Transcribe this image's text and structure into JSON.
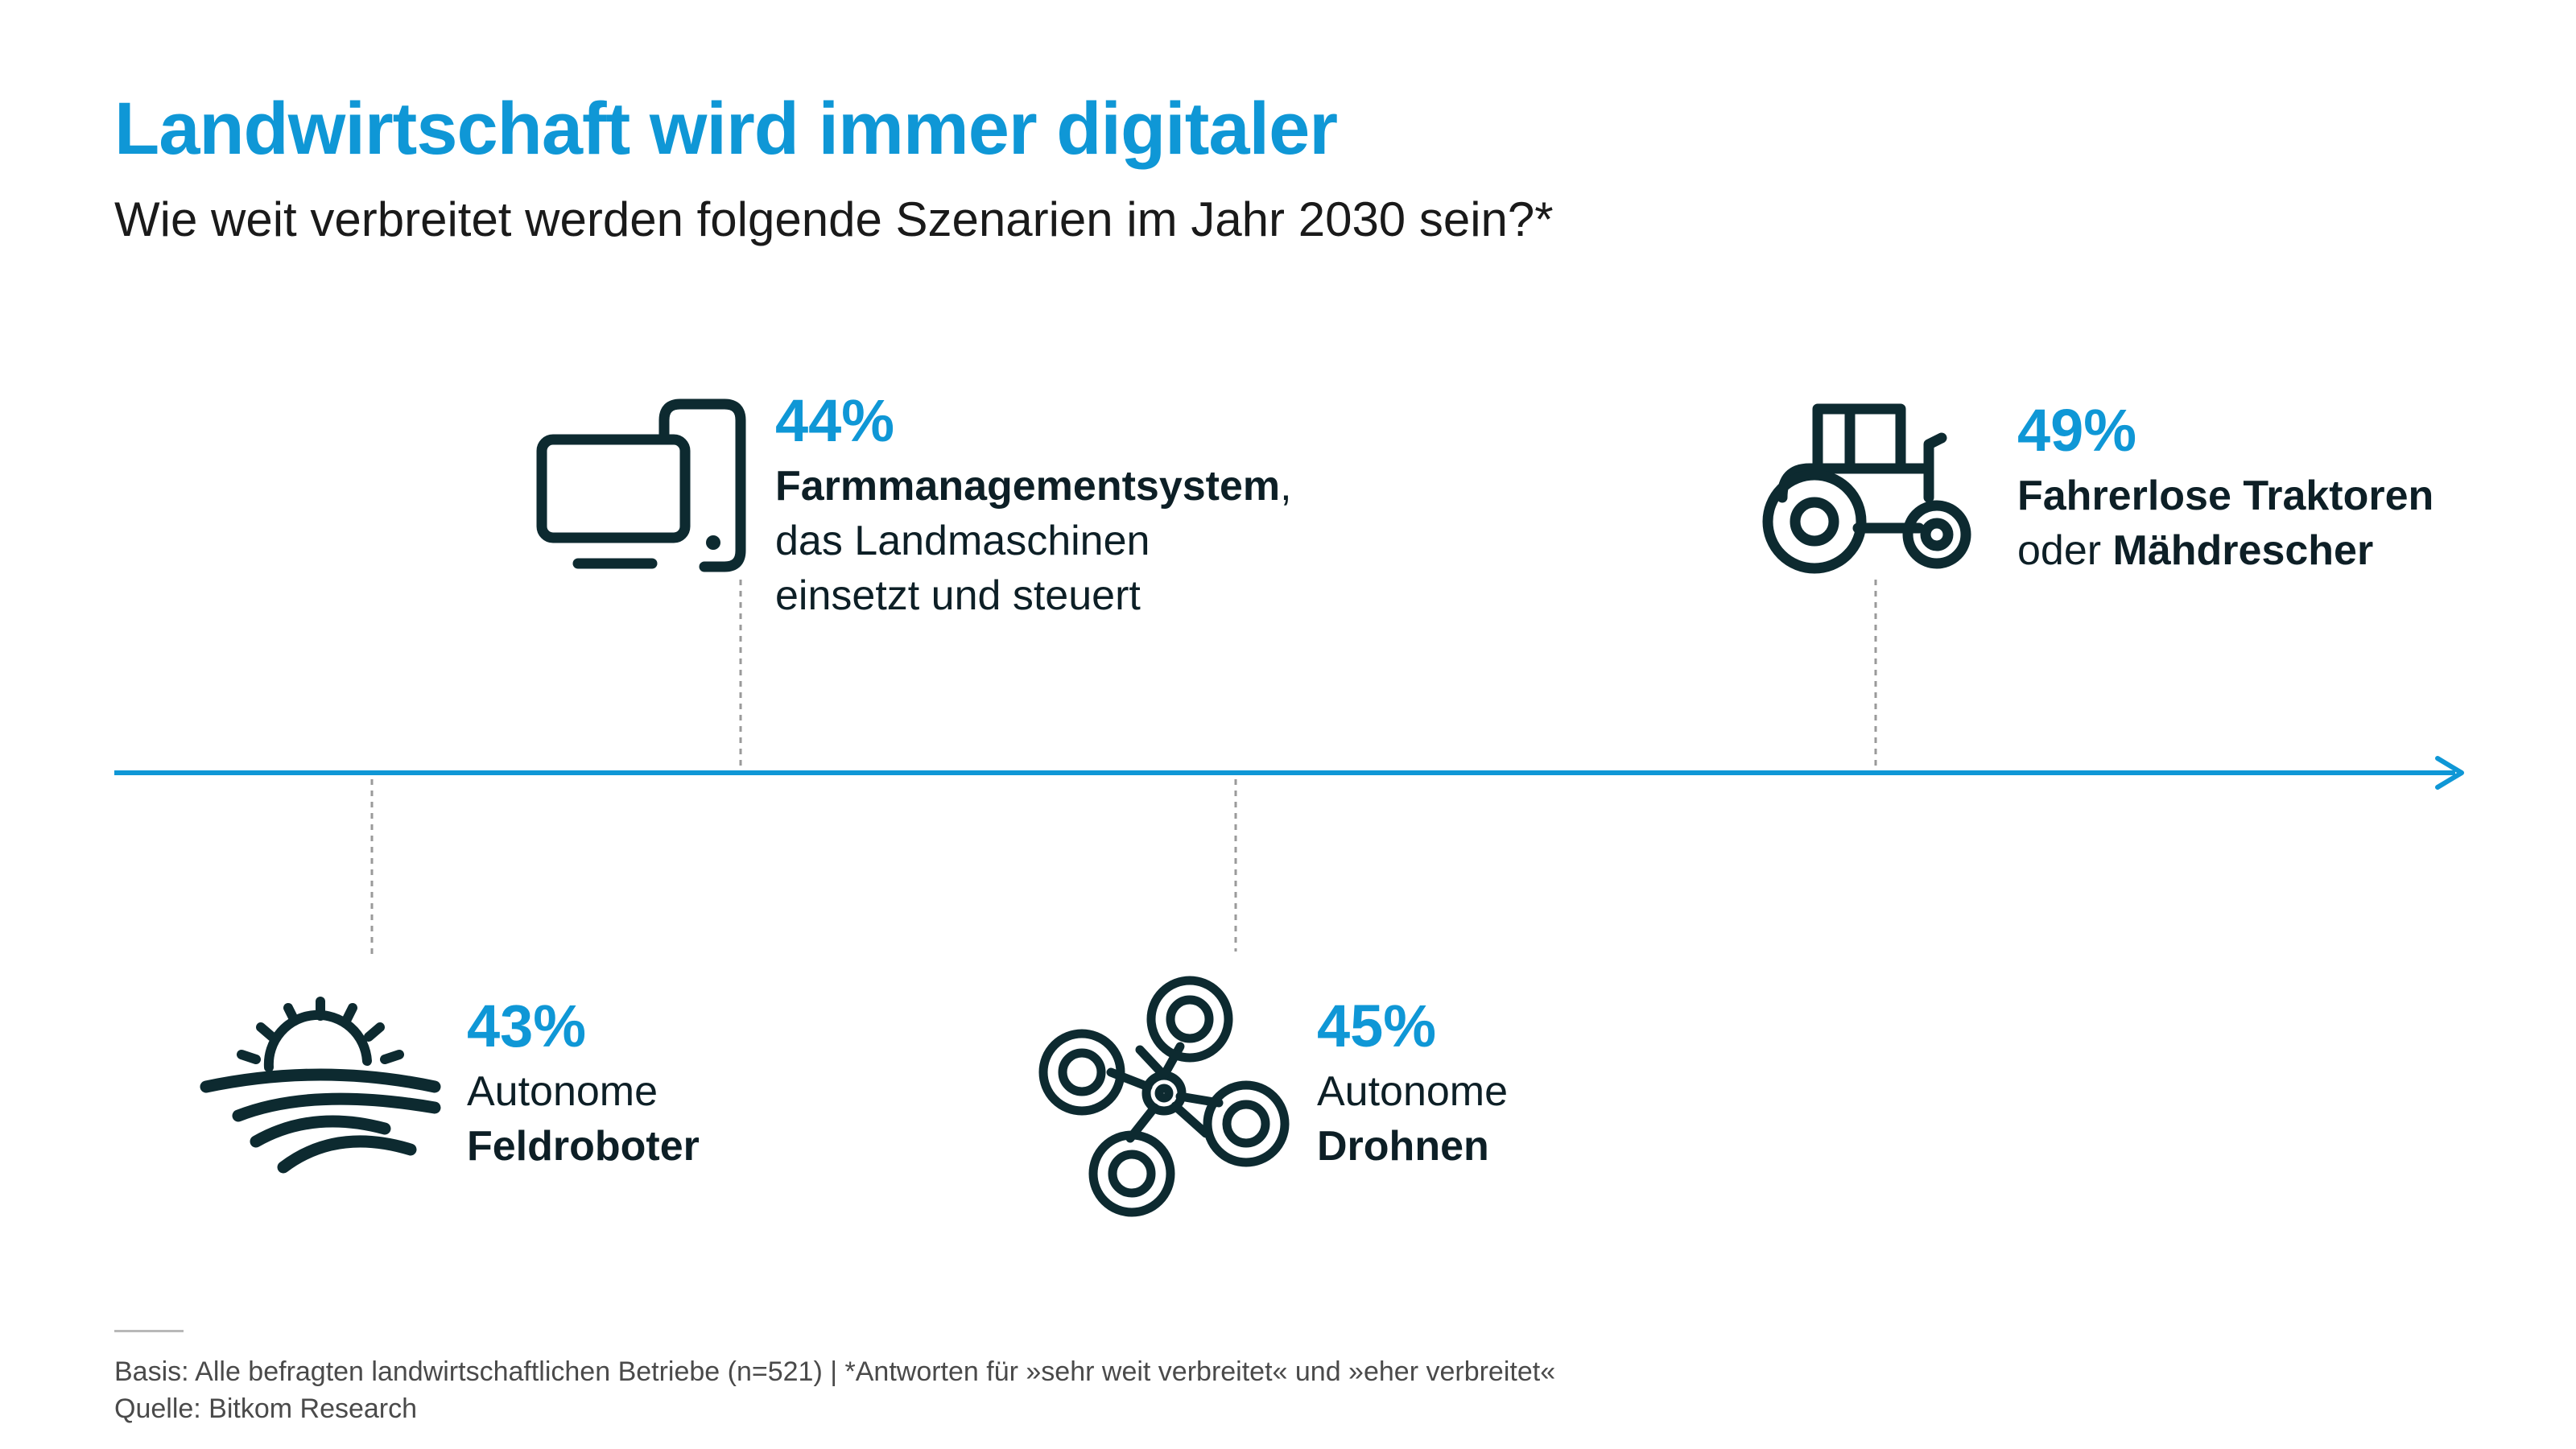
{
  "title": "Landwirtschaft wird immer digitaler",
  "subtitle": "Wie weit verbreitet werden folgende Szenarien im Jahr 2030 sein?*",
  "colors": {
    "accent": "#0f97d6",
    "icon": "#0d2a30",
    "text": "#0d1f26"
  },
  "chart_data": {
    "type": "timeline",
    "unit": "%",
    "items": [
      {
        "value": 43,
        "label": "43%",
        "line1": "Autonome",
        "line2_bold": "Feldroboter",
        "icon": "sun-over-field-icon"
      },
      {
        "value": 44,
        "label": "44%",
        "line1_bold": "Farmmanagementsystem",
        "line1_rest": ",",
        "line2": "das Landmaschinen",
        "line3": "einsetzt und steuert",
        "icon": "computer-and-phone-icon"
      },
      {
        "value": 45,
        "label": "45%",
        "line1": "Autonome",
        "line2_bold": "Drohnen",
        "icon": "drone-icon"
      },
      {
        "value": 49,
        "label": "49%",
        "line1_bold": "Fahrerlose Traktoren",
        "line2_prefix": "oder ",
        "line2_bold": "Mähdrescher",
        "icon": "tractor-icon"
      }
    ]
  },
  "footer": {
    "basis": "Basis: Alle befragten landwirtschaftlichen Betriebe (n=521) | *Antworten für »sehr weit verbreitet« und »eher verbreitet«",
    "source": "Quelle: Bitkom Research"
  }
}
